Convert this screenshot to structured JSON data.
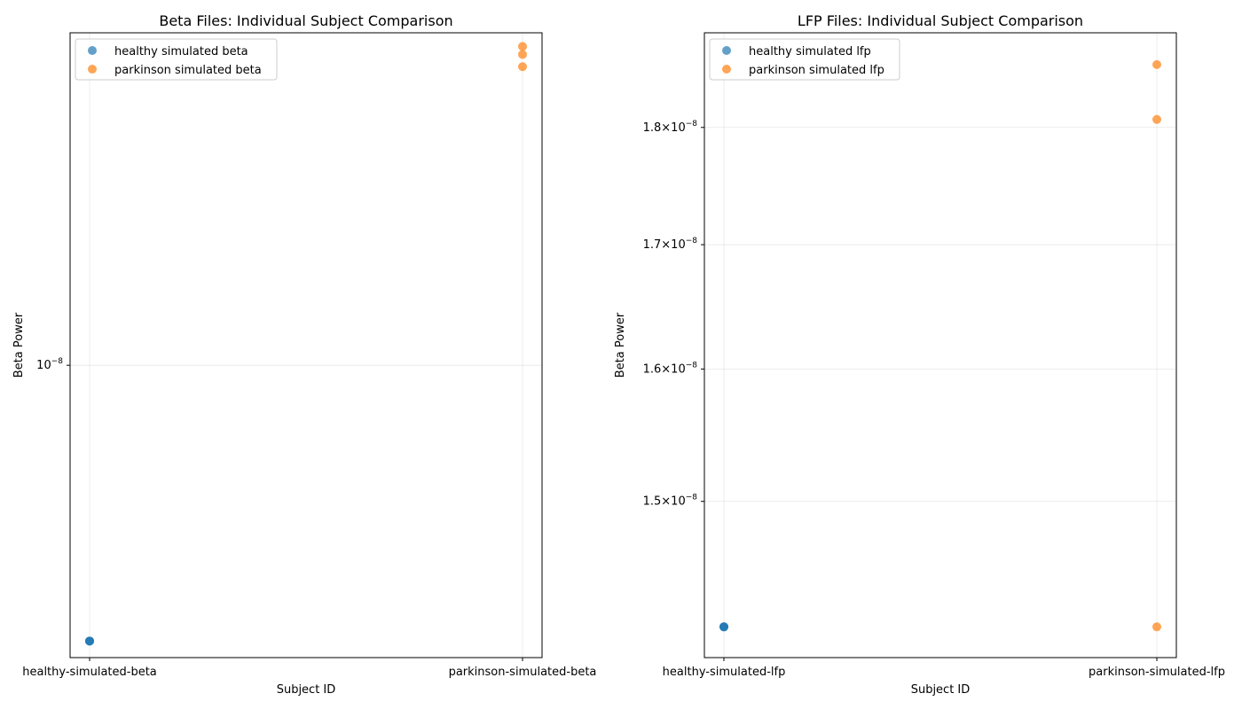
{
  "chart_data": [
    {
      "type": "scatter",
      "title": "Beta Files: Individual Subject Comparison",
      "xlabel": "Subject ID",
      "ylabel": "Beta Power",
      "yscale": "log",
      "ylim": [
        5e-09,
        2.2e-08
      ],
      "categories": [
        "healthy-simulated-beta",
        "parkinson-simulated-beta"
      ],
      "yticks": [
        {
          "value": 1e-08,
          "base": "10",
          "exp": "−8",
          "coef": ""
        }
      ],
      "grid": true,
      "legend_placement": "top-left",
      "series": [
        {
          "name": "healthy simulated beta",
          "color": "#1f77b4",
          "points": [
            {
              "x": "healthy-simulated-beta",
              "y": 5.2e-09
            },
            {
              "x": "healthy-simulated-beta",
              "y": 5.2e-09
            },
            {
              "x": "healthy-simulated-beta",
              "y": 5.2e-09
            }
          ]
        },
        {
          "name": "parkinson simulated beta",
          "color": "#ff7f0e",
          "points": [
            {
              "x": "parkinson-simulated-beta",
              "y": 2.13e-08
            },
            {
              "x": "parkinson-simulated-beta",
              "y": 2.09e-08
            },
            {
              "x": "parkinson-simulated-beta",
              "y": 2.03e-08
            }
          ]
        }
      ]
    },
    {
      "type": "scatter",
      "title": "LFP Files: Individual Subject Comparison",
      "xlabel": "Subject ID",
      "ylabel": "Beta Power",
      "yscale": "log",
      "ylim": [
        1.39e-08,
        1.885e-08
      ],
      "categories": [
        "healthy-simulated-lfp",
        "parkinson-simulated-lfp"
      ],
      "yticks": [
        {
          "value": 1.5e-08,
          "coef": "1.5",
          "base": "10",
          "exp": "−8"
        },
        {
          "value": 1.6e-08,
          "coef": "1.6",
          "base": "10",
          "exp": "−8"
        },
        {
          "value": 1.7e-08,
          "coef": "1.7",
          "base": "10",
          "exp": "−8"
        },
        {
          "value": 1.8e-08,
          "coef": "1.8",
          "base": "10",
          "exp": "−8"
        }
      ],
      "grid": true,
      "legend_placement": "top-left",
      "series": [
        {
          "name": "healthy simulated lfp",
          "color": "#1f77b4",
          "points": [
            {
              "x": "healthy-simulated-lfp",
              "y": 1.411e-08
            },
            {
              "x": "healthy-simulated-lfp",
              "y": 1.411e-08
            },
            {
              "x": "healthy-simulated-lfp",
              "y": 1.411e-08
            }
          ]
        },
        {
          "name": "parkinson simulated lfp",
          "color": "#ff7f0e",
          "points": [
            {
              "x": "parkinson-simulated-lfp",
              "y": 1.856e-08
            },
            {
              "x": "parkinson-simulated-lfp",
              "y": 1.807e-08
            },
            {
              "x": "parkinson-simulated-lfp",
              "y": 1.411e-08
            }
          ]
        }
      ]
    }
  ]
}
